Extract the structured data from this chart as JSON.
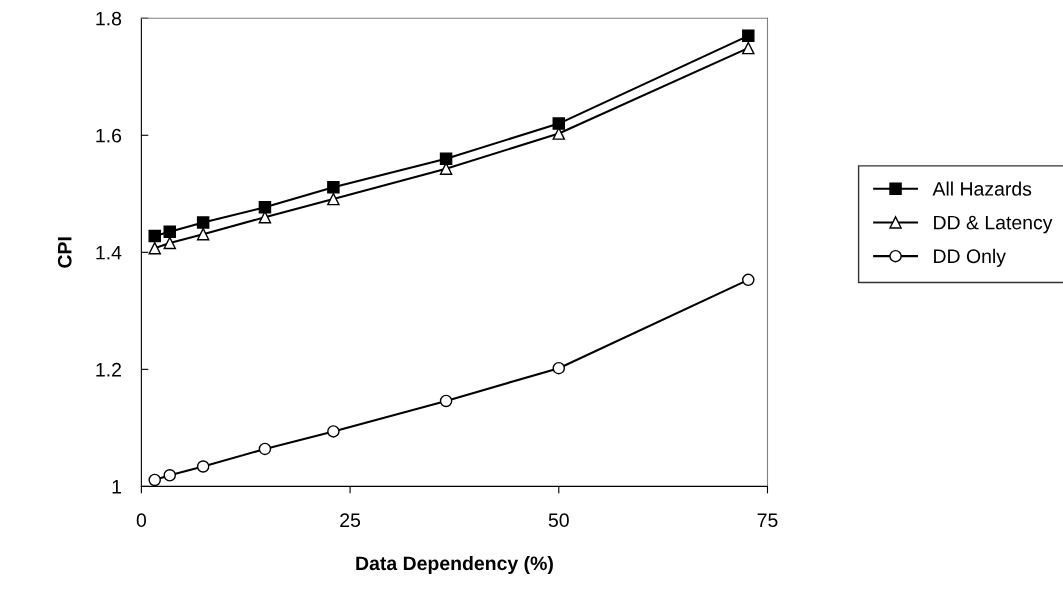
{
  "chart_data": {
    "type": "line",
    "xlabel": "Data Dependency (%)",
    "ylabel": "CPI",
    "x": [
      1.6,
      3.4,
      7.4,
      14.8,
      23.0,
      36.5,
      50.0,
      72.7
    ],
    "series": [
      {
        "name": "All Hazards",
        "color": "#000000",
        "marker": "square",
        "values": [
          1.428,
          1.435,
          1.451,
          1.477,
          1.511,
          1.56,
          1.62,
          1.77
        ]
      },
      {
        "name": "DD & Latency",
        "color": "#000000",
        "marker": "triangle",
        "values": [
          1.407,
          1.416,
          1.431,
          1.46,
          1.491,
          1.543,
          1.603,
          1.749
        ]
      },
      {
        "name": "DD Only",
        "color": "#000000",
        "marker": "circle",
        "values": [
          1.011,
          1.019,
          1.034,
          1.064,
          1.094,
          1.146,
          1.202,
          1.353
        ]
      }
    ],
    "xlim": [
      0,
      75
    ],
    "xticks": [
      0,
      25,
      50,
      75
    ],
    "ylim": [
      1,
      1.8
    ],
    "yticks": [
      {
        "value": 1,
        "label": "1"
      },
      {
        "value": 1.2,
        "label": "1.2"
      },
      {
        "value": 1.4,
        "label": "1.4"
      },
      {
        "value": 1.6,
        "label": "1.6"
      },
      {
        "value": 1.8,
        "label": "1.8"
      }
    ],
    "grid": false,
    "legend": "right",
    "line_style": "solid"
  }
}
